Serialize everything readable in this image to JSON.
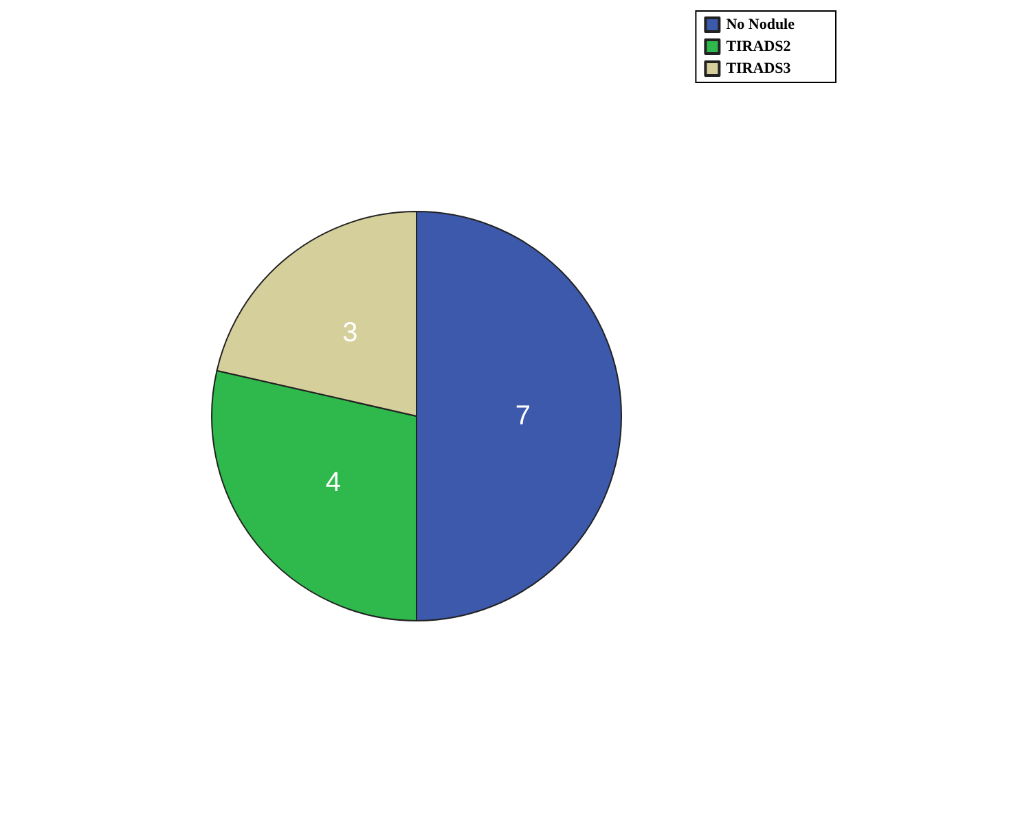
{
  "chart_data": {
    "type": "pie",
    "categories": [
      "No Nodule",
      "TIRADS2",
      "TIRADS3"
    ],
    "values": [
      7,
      4,
      3
    ],
    "colors": [
      "#3d59ab",
      "#2fb84b",
      "#d5cf9b"
    ],
    "data_labels": true,
    "legend": "top right"
  }
}
